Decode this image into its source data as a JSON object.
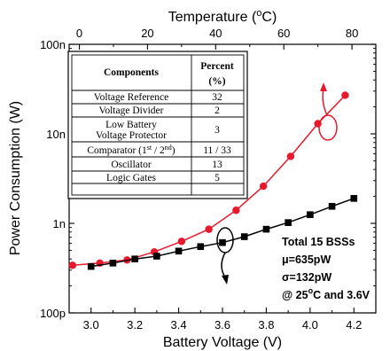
{
  "chart_data": {
    "type": "line",
    "x": [
      3.0,
      3.1,
      3.2,
      3.3,
      3.4,
      3.5,
      3.6,
      3.7,
      3.8,
      3.9,
      4.0,
      4.1,
      4.2
    ],
    "xlim": [
      2.9,
      4.3
    ],
    "x_ticks": [
      "3.0",
      "3.2",
      "3.4",
      "3.6",
      "3.8",
      "4.0",
      "4.2"
    ],
    "xlabel": "Battery Voltage (V)",
    "top_axis": {
      "label_prefix": "Temperature (",
      "label_sup": "o",
      "label_suffix": "C)",
      "lim": [
        -3,
        87
      ],
      "ticks": [
        "0",
        "20",
        "40",
        "60",
        "80"
      ]
    },
    "ylabel": "Power Consumption (W)",
    "yscale": "log",
    "ylim_watts": [
      1e-10,
      1e-07
    ],
    "y_ticks": [
      "100p",
      "1n",
      "10n",
      "100n"
    ],
    "series": [
      {
        "axis": "temperature",
        "color": "#e8192c",
        "marker": "circle",
        "x": [
          -2,
          6,
          14,
          22,
          30,
          38,
          46,
          54,
          62,
          70,
          78
        ],
        "y": [
          3.4e-10,
          3.6e-10,
          3.9e-10,
          4.8e-10,
          6.3e-10,
          8.6e-10,
          1.4e-09,
          2.6e-09,
          5.6e-09,
          1.3e-08,
          2.7e-08
        ]
      },
      {
        "axis": "voltage",
        "color": "#000000",
        "marker": "square",
        "x": [
          3.0,
          3.1,
          3.2,
          3.3,
          3.4,
          3.5,
          3.6,
          3.7,
          3.8,
          3.9,
          4.0,
          4.1,
          4.2
        ],
        "y": [
          3.3e-10,
          3.6e-10,
          4e-10,
          4.3e-10,
          4.9e-10,
          5.5e-10,
          6.1e-10,
          7.1e-10,
          8.6e-10,
          1.02e-09,
          1.25e-09,
          1.55e-09,
          1.9e-09
        ]
      }
    ],
    "annotation": {
      "line1": "Total 15 BSSs",
      "line2": "μ=635pW",
      "line3": "σ=132pW",
      "line4_prefix": "@ 25",
      "line4_sup": "o",
      "line4_suffix": "C and 3.6V"
    },
    "legend": "none",
    "grid": false
  },
  "table": {
    "header_components": "Components",
    "header_percent_line1": "Percent",
    "header_percent_line2": "(%)",
    "rows": [
      {
        "name": "Voltage Reference",
        "value": "32"
      },
      {
        "name": "Voltage Divider",
        "value": "2"
      },
      {
        "name_line1": "Low Battery",
        "name_line2": "Voltage  Protector",
        "value": "3"
      },
      {
        "name_prefix": "Comparator (1",
        "name_sup1": "st",
        "name_mid": " / 2",
        "name_sup2": "nd",
        "name_suffix": ")",
        "value": "11 / 33"
      },
      {
        "name": "Oscillator",
        "value": "13"
      },
      {
        "name": "Logic Gates",
        "value": "5"
      }
    ]
  }
}
